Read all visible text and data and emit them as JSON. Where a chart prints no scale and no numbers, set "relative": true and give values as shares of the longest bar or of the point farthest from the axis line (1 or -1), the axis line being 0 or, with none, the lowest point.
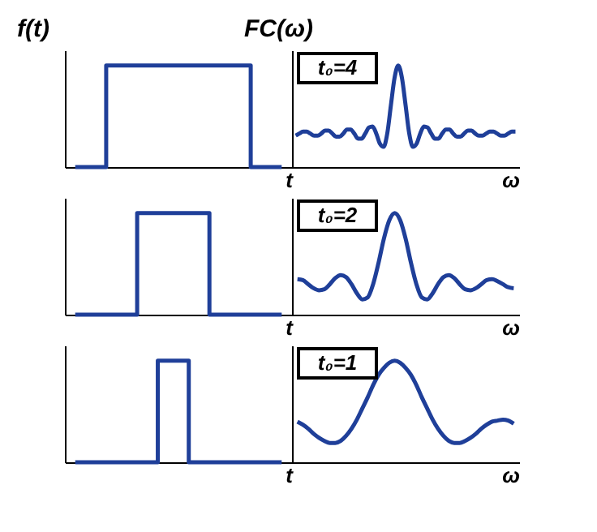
{
  "chart_data": [
    {
      "type": "step",
      "relative": true,
      "ylabel": "f(t)",
      "xlabel": "t",
      "tick_labels": false,
      "grid": false,
      "color": "#1f3f99",
      "categories": [
        null,
        null,
        null,
        null,
        null,
        null,
        null,
        null,
        null,
        null,
        null,
        null,
        null,
        null,
        null,
        null,
        null,
        null,
        null,
        null,
        null
      ],
      "values": [
        0,
        0,
        0,
        1,
        1,
        1,
        1,
        1,
        1,
        1,
        1,
        1,
        1,
        1,
        1,
        1,
        1,
        0,
        0,
        0,
        0
      ]
    },
    {
      "type": "line",
      "relative": true,
      "ylabel": "FC(ω)",
      "xlabel": "ω",
      "tick_labels": false,
      "grid": false,
      "color": "#1f3f99",
      "annotations": [
        "t₀=4"
      ],
      "categories": [
        null,
        null,
        null,
        null,
        null,
        null,
        null,
        null,
        null,
        null,
        null,
        null,
        null,
        null,
        null,
        null,
        null,
        null,
        null,
        null,
        null,
        null,
        null,
        null,
        null,
        null,
        null,
        null,
        null,
        null,
        null,
        null,
        null,
        null,
        null,
        null,
        null,
        null,
        null,
        null,
        null,
        null,
        null,
        null,
        null,
        null,
        null,
        null,
        null,
        null,
        null,
        null,
        null,
        null,
        null,
        null,
        null,
        null,
        null,
        null,
        null
      ],
      "values": [
        0.31,
        0.33,
        0.35,
        0.35,
        0.33,
        0.31,
        0.31,
        0.33,
        0.36,
        0.36,
        0.33,
        0.3,
        0.3,
        0.33,
        0.37,
        0.37,
        0.33,
        0.28,
        0.28,
        0.33,
        0.39,
        0.4,
        0.33,
        0.23,
        0.2,
        0.33,
        0.61,
        0.88,
        1.0,
        0.88,
        0.61,
        0.33,
        0.2,
        0.23,
        0.33,
        0.4,
        0.39,
        0.33,
        0.28,
        0.28,
        0.33,
        0.37,
        0.37,
        0.33,
        0.3,
        0.3,
        0.33,
        0.36,
        0.36,
        0.33,
        0.31,
        0.31,
        0.33,
        0.35,
        0.35,
        0.33,
        0.31,
        0.31,
        0.33,
        0.35,
        0.35
      ]
    },
    {
      "type": "step",
      "relative": true,
      "xlabel": "t",
      "tick_labels": false,
      "grid": false,
      "color": "#1f3f99",
      "categories": [
        null,
        null,
        null,
        null,
        null,
        null,
        null,
        null,
        null,
        null,
        null,
        null,
        null,
        null,
        null,
        null,
        null,
        null,
        null,
        null,
        null
      ],
      "values": [
        0,
        0,
        0,
        0,
        0,
        0,
        1,
        1,
        1,
        1,
        1,
        1,
        1,
        0,
        0,
        0,
        0,
        0,
        0,
        0,
        0
      ]
    },
    {
      "type": "line",
      "relative": true,
      "xlabel": "ω",
      "tick_labels": false,
      "grid": false,
      "color": "#1f3f99",
      "annotations": [
        "t₀=2"
      ],
      "categories": [
        null,
        null,
        null,
        null,
        null,
        null,
        null,
        null,
        null,
        null,
        null,
        null,
        null,
        null,
        null,
        null,
        null,
        null,
        null,
        null,
        null,
        null,
        null,
        null,
        null,
        null,
        null,
        null,
        null,
        null,
        null,
        null,
        null,
        null,
        null,
        null,
        null,
        null,
        null,
        null,
        null
      ],
      "values": [
        0.35,
        0.34,
        0.3,
        0.26,
        0.24,
        0.25,
        0.3,
        0.36,
        0.39,
        0.37,
        0.3,
        0.21,
        0.15,
        0.17,
        0.3,
        0.51,
        0.75,
        0.93,
        1.0,
        0.93,
        0.75,
        0.51,
        0.3,
        0.17,
        0.15,
        0.21,
        0.3,
        0.37,
        0.39,
        0.36,
        0.3,
        0.25,
        0.24,
        0.26,
        0.3,
        0.34,
        0.35,
        0.33,
        0.3,
        0.27,
        0.26
      ]
    },
    {
      "type": "step",
      "relative": true,
      "xlabel": "t",
      "tick_labels": false,
      "grid": false,
      "color": "#1f3f99",
      "categories": [
        null,
        null,
        null,
        null,
        null,
        null,
        null,
        null,
        null,
        null,
        null,
        null,
        null,
        null,
        null,
        null,
        null,
        null,
        null,
        null,
        null
      ],
      "values": [
        0,
        0,
        0,
        0,
        0,
        0,
        0,
        0,
        1,
        1,
        1,
        0,
        0,
        0,
        0,
        0,
        0,
        0,
        0,
        0,
        0
      ]
    },
    {
      "type": "line",
      "relative": true,
      "xlabel": "ω",
      "tick_labels": false,
      "grid": false,
      "color": "#1f3f99",
      "annotations": [
        "t₀=1"
      ],
      "categories": [
        null,
        null,
        null,
        null,
        null,
        null,
        null,
        null,
        null,
        null,
        null,
        null,
        null,
        null,
        null,
        null,
        null,
        null,
        null,
        null,
        null,
        null,
        null,
        null,
        null,
        null,
        null,
        null,
        null,
        null,
        null,
        null,
        null,
        null,
        null,
        null,
        null,
        null,
        null,
        null,
        null
      ],
      "values": [
        0.4,
        0.37,
        0.33,
        0.28,
        0.24,
        0.21,
        0.19,
        0.19,
        0.21,
        0.26,
        0.33,
        0.42,
        0.53,
        0.64,
        0.76,
        0.86,
        0.93,
        0.98,
        1.0,
        0.98,
        0.93,
        0.86,
        0.76,
        0.64,
        0.53,
        0.42,
        0.33,
        0.26,
        0.21,
        0.19,
        0.19,
        0.21,
        0.24,
        0.28,
        0.33,
        0.37,
        0.4,
        0.41,
        0.42,
        0.41,
        0.38
      ]
    }
  ]
}
